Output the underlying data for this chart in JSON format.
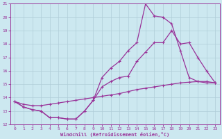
{
  "xlabel": "Windchill (Refroidissement éolien,°C)",
  "background_color": "#cce8f0",
  "grid_color": "#b0cdd8",
  "line_color": "#993399",
  "xlim": [
    -0.5,
    23.5
  ],
  "ylim": [
    12,
    21
  ],
  "xticks": [
    0,
    1,
    2,
    3,
    4,
    5,
    6,
    7,
    8,
    9,
    10,
    11,
    12,
    13,
    14,
    15,
    16,
    17,
    18,
    19,
    20,
    21,
    22,
    23
  ],
  "yticks": [
    12,
    13,
    14,
    15,
    16,
    17,
    18,
    19,
    20,
    21
  ],
  "line1_x": [
    0,
    1,
    2,
    3,
    4,
    5,
    6,
    7,
    8,
    9,
    10,
    11,
    12,
    13,
    14,
    15,
    16,
    17,
    18,
    19,
    20,
    21,
    22,
    23
  ],
  "line1_y": [
    13.7,
    13.3,
    13.1,
    13.0,
    12.5,
    12.5,
    12.4,
    12.4,
    13.0,
    13.8,
    14.8,
    15.2,
    15.5,
    15.6,
    16.7,
    17.4,
    18.1,
    18.1,
    19.0,
    18.0,
    18.1,
    17.0,
    16.0,
    15.1
  ],
  "line2_x": [
    0,
    1,
    2,
    3,
    4,
    5,
    6,
    7,
    8,
    9,
    10,
    11,
    12,
    13,
    14,
    15,
    16,
    17,
    18,
    19,
    20,
    21,
    22,
    23
  ],
  "line2_y": [
    13.7,
    13.3,
    13.1,
    13.0,
    12.5,
    12.5,
    12.4,
    12.4,
    13.0,
    13.8,
    15.5,
    16.2,
    16.7,
    17.5,
    18.1,
    21.0,
    20.1,
    20.0,
    19.5,
    17.5,
    15.5,
    15.2,
    15.1,
    15.1
  ],
  "line3_x": [
    0,
    1,
    2,
    3,
    4,
    5,
    6,
    7,
    8,
    9,
    10,
    11,
    12,
    13,
    14,
    15,
    16,
    17,
    18,
    19,
    20,
    21,
    22,
    23
  ],
  "line3_y": [
    13.7,
    13.5,
    13.4,
    13.4,
    13.5,
    13.6,
    13.7,
    13.8,
    13.9,
    14.0,
    14.1,
    14.2,
    14.3,
    14.45,
    14.6,
    14.7,
    14.8,
    14.9,
    15.0,
    15.1,
    15.15,
    15.2,
    15.2,
    15.1
  ]
}
